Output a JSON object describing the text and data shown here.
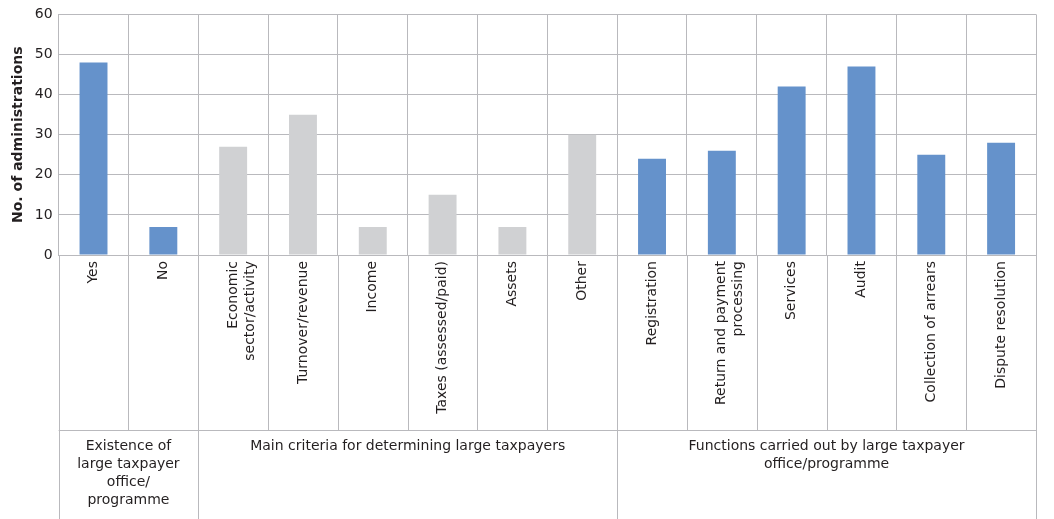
{
  "chart_data": {
    "type": "bar",
    "ylabel": "No. of administrations",
    "categories": [
      "Yes",
      "No",
      "Economic sector/activity",
      "Turnover/revenue",
      "Income",
      "Taxes (assessed/paid)",
      "Assets",
      "Other",
      "Registration",
      "Return and payment processing",
      "Services",
      "Audit",
      "Collection of arrears",
      "Dispute resolution"
    ],
    "values": [
      48,
      7,
      27,
      35,
      7,
      15,
      7,
      30,
      24,
      26,
      42,
      47,
      25,
      28
    ],
    "colors": [
      "#6592cb",
      "#6592cb",
      "#d0d1d3",
      "#d0d1d3",
      "#d0d1d3",
      "#d0d1d3",
      "#d0d1d3",
      "#d0d1d3",
      "#6592cb",
      "#6592cb",
      "#6592cb",
      "#6592cb",
      "#6592cb",
      "#6592cb"
    ],
    "annotations": [
      "Existence of large taxpayer office/ programme",
      "Main criteria for determining large taxpayers",
      "Functions carried out by large taxpayer office/programme"
    ],
    "ylim": [
      0,
      60
    ],
    "yticks": [
      0,
      10,
      20,
      30,
      40,
      50,
      60
    ],
    "grid": true,
    "legend": false
  }
}
